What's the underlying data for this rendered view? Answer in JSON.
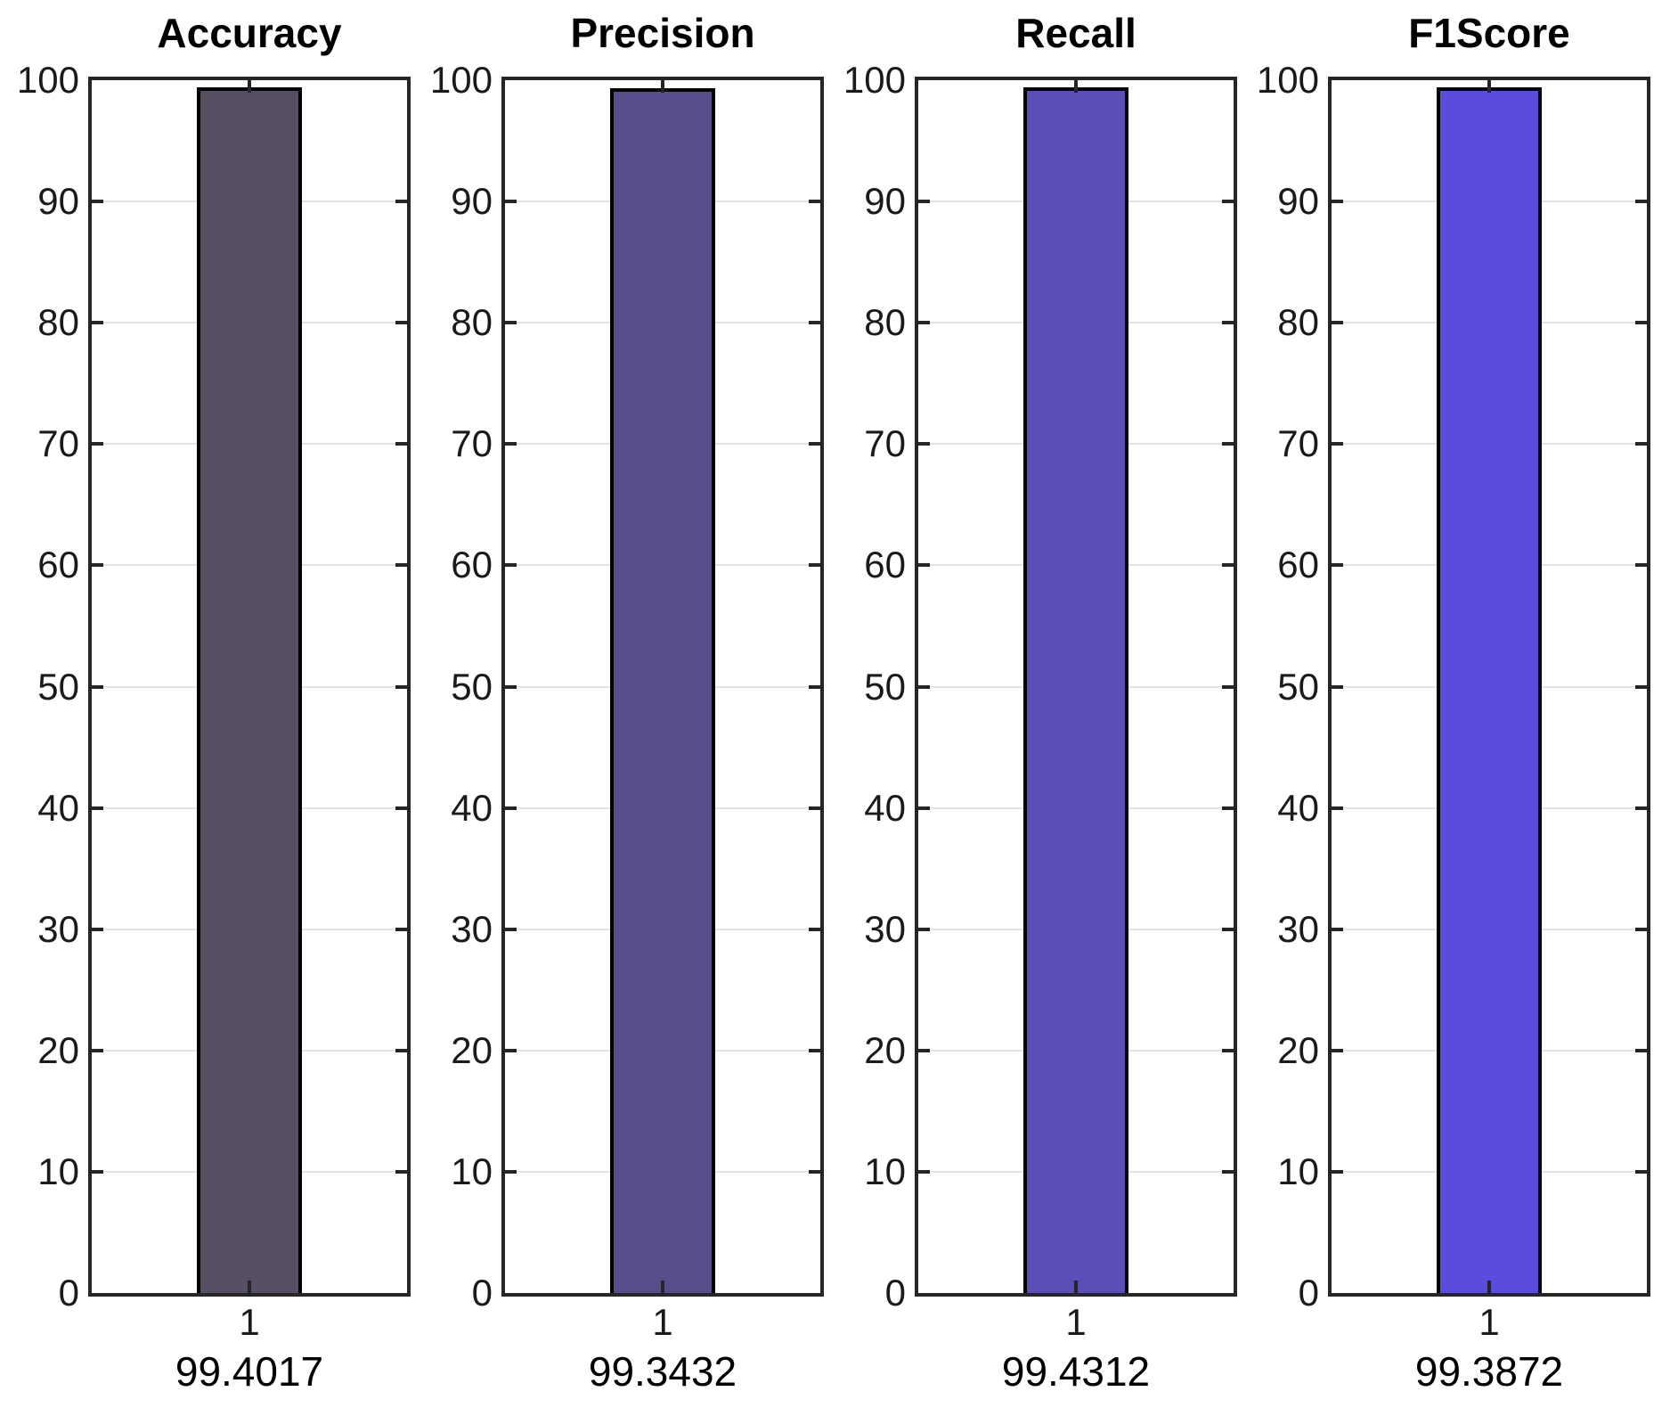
{
  "figure": {
    "background": "#ffffff",
    "axis_color": "#262626",
    "grid_color": "#e2e2e2",
    "bar_edge_color": "#000000",
    "tick_label_color": "#1a1a1a"
  },
  "chart_data": [
    {
      "type": "bar",
      "title": "Accuracy",
      "categories": [
        "1"
      ],
      "values": [
        99.4017
      ],
      "value_label": "99.4017",
      "xlabel": "99.4017",
      "ylabel": "",
      "ylim": [
        0,
        100
      ],
      "yticks": [
        0,
        10,
        20,
        30,
        40,
        50,
        60,
        70,
        80,
        90,
        100
      ],
      "grid": true,
      "legend": false,
      "bar_color": "#564e62"
    },
    {
      "type": "bar",
      "title": "Precision",
      "categories": [
        "1"
      ],
      "values": [
        99.3432
      ],
      "value_label": "99.3432",
      "xlabel": "99.3432",
      "ylabel": "",
      "ylim": [
        0,
        100
      ],
      "yticks": [
        0,
        10,
        20,
        30,
        40,
        50,
        60,
        70,
        80,
        90,
        100
      ],
      "grid": true,
      "legend": false,
      "bar_color": "#564d8a"
    },
    {
      "type": "bar",
      "title": "Recall",
      "categories": [
        "1"
      ],
      "values": [
        99.4312
      ],
      "value_label": "99.4312",
      "xlabel": "99.4312",
      "ylabel": "",
      "ylim": [
        0,
        100
      ],
      "yticks": [
        0,
        10,
        20,
        30,
        40,
        50,
        60,
        70,
        80,
        90,
        100
      ],
      "grid": true,
      "legend": false,
      "bar_color": "#5a4db5"
    },
    {
      "type": "bar",
      "title": "F1Score",
      "categories": [
        "1"
      ],
      "values": [
        99.3872
      ],
      "value_label": "99.3872",
      "xlabel": "99.3872",
      "ylabel": "",
      "ylim": [
        0,
        100
      ],
      "yticks": [
        0,
        10,
        20,
        30,
        40,
        50,
        60,
        70,
        80,
        90,
        100
      ],
      "grid": true,
      "legend": false,
      "bar_color": "#5a4cdc"
    }
  ]
}
